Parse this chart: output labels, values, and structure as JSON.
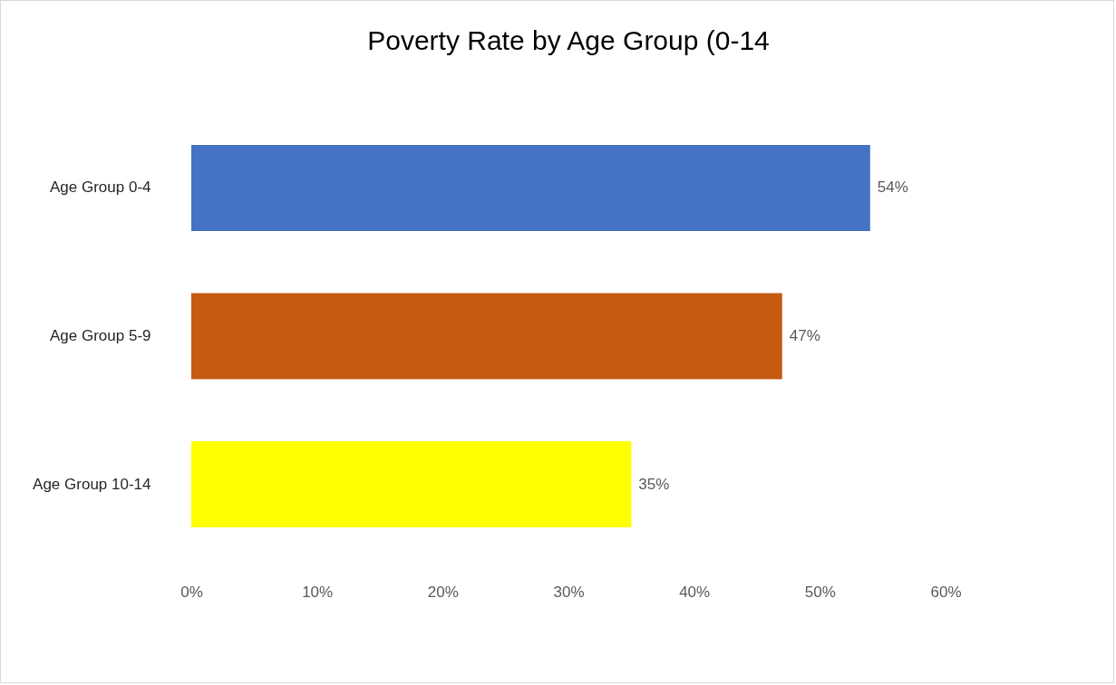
{
  "chart_data": {
    "type": "bar",
    "orientation": "horizontal",
    "title": "Poverty Rate by Age Group (0-14",
    "categories": [
      "Age Group 0-4",
      "Age Group 5-9",
      "Age Group    10-14"
    ],
    "values": [
      54,
      47,
      35
    ],
    "colors": [
      "#4472c4",
      "#c55a11",
      "#ffff00"
    ],
    "value_labels": [
      "54%",
      "47%",
      "35%"
    ],
    "xlim": [
      0,
      60
    ],
    "xticks": [
      {
        "value": 0,
        "label": "0%"
      },
      {
        "value": 10,
        "label": "10%"
      },
      {
        "value": 20,
        "label": "20%"
      },
      {
        "value": 30,
        "label": "30%"
      },
      {
        "value": 40,
        "label": "40%"
      },
      {
        "value": 50,
        "label": "50%"
      },
      {
        "value": 60,
        "label": "60%"
      }
    ],
    "grid": false
  }
}
